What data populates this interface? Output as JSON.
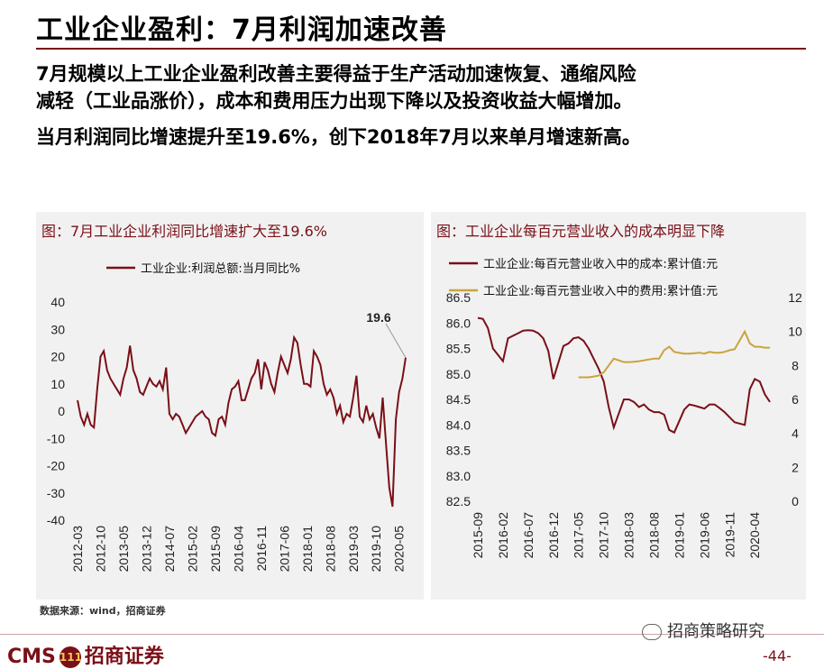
{
  "slide": {
    "title": "工业企业盈利：7月利润加速改善",
    "line1": "7月规模以上工业企业盈利改善主要得益于生产活动加速恢复、通缩风险",
    "line2": "减轻（工业品涨价），成本和费用压力出现下降以及投资收益大幅增加。",
    "line3": "当月利润同比增速提升至19.6%，创下2018年7月以来单月增速新高。",
    "source": "数据来源：wind，招商证券",
    "logo_text": "CMS",
    "logo_badge": "111",
    "logo_cn": "招商证券",
    "brand": "招商策略研究",
    "page": "-44-"
  },
  "colors": {
    "dark_red": "#7a0f17",
    "gold": "#c9a43c"
  },
  "chart_data": [
    {
      "type": "line",
      "title": "图：7月工业企业利润同比增速扩大至19.6%",
      "legend_position": "top",
      "ylim": [
        -40,
        40
      ],
      "yticks": [
        "40",
        "30",
        "20",
        "10",
        "0",
        "-10",
        "-20",
        "-30",
        "-40"
      ],
      "xticks": [
        "2012-03",
        "2012-10",
        "2013-05",
        "2013-12",
        "2014-07",
        "2015-02",
        "2015-09",
        "2016-04",
        "2016-11",
        "2017-06",
        "2018-01",
        "2018-08",
        "2019-03",
        "2019-10",
        "2020-05"
      ],
      "annotation": "19.6",
      "series": [
        {
          "name": "工业企业:利润总额:当月同比%",
          "color": "#7a0f17",
          "x": [
            "2012-03",
            "2012-04",
            "2012-05",
            "2012-06",
            "2012-07",
            "2012-08",
            "2012-09",
            "2012-10",
            "2012-11",
            "2012-12",
            "2013-01",
            "2013-02",
            "2013-03",
            "2013-04",
            "2013-05",
            "2013-06",
            "2013-07",
            "2013-08",
            "2013-09",
            "2013-10",
            "2013-11",
            "2013-12",
            "2014-01",
            "2014-02",
            "2014-03",
            "2014-04",
            "2014-05",
            "2014-06",
            "2014-07",
            "2014-08",
            "2014-09",
            "2014-10",
            "2014-11",
            "2014-12",
            "2015-01",
            "2015-02",
            "2015-03",
            "2015-04",
            "2015-05",
            "2015-06",
            "2015-07",
            "2015-08",
            "2015-09",
            "2015-10",
            "2015-11",
            "2015-12",
            "2016-01",
            "2016-02",
            "2016-03",
            "2016-04",
            "2016-05",
            "2016-06",
            "2016-07",
            "2016-08",
            "2016-09",
            "2016-10",
            "2016-11",
            "2016-12",
            "2017-01",
            "2017-02",
            "2017-03",
            "2017-04",
            "2017-05",
            "2017-06",
            "2017-07",
            "2017-08",
            "2017-09",
            "2017-10",
            "2017-11",
            "2017-12",
            "2018-01",
            "2018-02",
            "2018-03",
            "2018-04",
            "2018-05",
            "2018-06",
            "2018-07",
            "2018-08",
            "2018-09",
            "2018-10",
            "2018-11",
            "2018-12",
            "2019-01",
            "2019-02",
            "2019-03",
            "2019-04",
            "2019-05",
            "2019-06",
            "2019-07",
            "2019-08",
            "2019-09",
            "2019-10",
            "2019-11",
            "2019-12",
            "2020-01",
            "2020-02",
            "2020-03",
            "2020-04",
            "2020-05",
            "2020-06",
            "2020-07"
          ],
          "values": [
            4,
            -2,
            -5,
            -1,
            -5,
            -6,
            8,
            20,
            22,
            15,
            12,
            10,
            8,
            6,
            12,
            16,
            24,
            15,
            12,
            7,
            6,
            9,
            12,
            10,
            9,
            11,
            8,
            16,
            -1,
            -3,
            -1,
            -2,
            -5,
            -8,
            -6,
            -4,
            -2,
            -1,
            0,
            -2,
            -3,
            -8,
            -9,
            -3,
            -2,
            -5,
            3,
            8,
            9,
            11,
            4,
            4,
            8,
            12,
            14,
            19,
            8,
            18,
            15,
            10,
            7,
            14,
            20,
            17,
            14,
            19,
            27,
            25,
            17,
            10,
            10,
            9,
            22,
            20,
            17,
            10,
            6,
            8,
            5,
            -1,
            2,
            -4,
            -1,
            -2,
            5,
            13,
            -2,
            -4,
            2,
            -3,
            -1,
            -6,
            -10,
            5,
            -12,
            -28,
            -35,
            -3,
            7,
            12,
            19.6
          ]
        }
      ]
    },
    {
      "type": "line",
      "title": "图：工业企业每百元营业收入的成本明显下降",
      "legend_position": "top",
      "ylim_left": [
        82.5,
        86.5
      ],
      "ylim_right": [
        0,
        12
      ],
      "yticks_left": [
        "86.5",
        "86.0",
        "85.5",
        "85.0",
        "84.5",
        "84.0",
        "83.5",
        "83.0",
        "82.5"
      ],
      "yticks_right": [
        "12",
        "10",
        "8",
        "6",
        "4",
        "2",
        "0"
      ],
      "xticks": [
        "2015-09",
        "2016-02",
        "2016-07",
        "2016-12",
        "2017-05",
        "2017-10",
        "2018-03",
        "2018-08",
        "2019-01",
        "2019-06",
        "2019-11",
        "2020-04"
      ],
      "series": [
        {
          "name": "工业企业:每百元营业收入中的成本:累计值:元",
          "color": "#7a0f17",
          "axis": "left",
          "x": [
            "2015-09",
            "2015-10",
            "2015-11",
            "2015-12",
            "2016-02",
            "2016-03",
            "2016-04",
            "2016-05",
            "2016-06",
            "2016-07",
            "2016-08",
            "2016-09",
            "2016-10",
            "2016-11",
            "2016-12",
            "2017-02",
            "2017-03",
            "2017-04",
            "2017-05",
            "2017-06",
            "2017-07",
            "2017-08",
            "2017-09",
            "2017-10",
            "2017-11",
            "2017-12",
            "2018-02",
            "2018-03",
            "2018-04",
            "2018-05",
            "2018-06",
            "2018-07",
            "2018-08",
            "2018-09",
            "2018-10",
            "2018-11",
            "2018-12",
            "2019-02",
            "2019-03",
            "2019-04",
            "2019-05",
            "2019-06",
            "2019-07",
            "2019-08",
            "2019-09",
            "2019-10",
            "2019-11",
            "2019-12",
            "2020-02",
            "2020-03",
            "2020-04",
            "2020-05",
            "2020-06",
            "2020-07"
          ],
          "values": [
            86.1,
            86.08,
            85.9,
            85.5,
            85.25,
            85.7,
            85.75,
            85.8,
            85.85,
            85.86,
            85.85,
            85.8,
            85.7,
            85.45,
            84.9,
            85.55,
            85.6,
            85.7,
            85.72,
            85.65,
            85.5,
            85.3,
            85.1,
            84.85,
            84.35,
            83.95,
            84.5,
            84.5,
            84.45,
            84.35,
            84.4,
            84.3,
            84.25,
            84.25,
            84.2,
            83.9,
            83.85,
            84.3,
            84.4,
            84.38,
            84.35,
            84.32,
            84.4,
            84.4,
            84.33,
            84.25,
            84.15,
            84.05,
            84.0,
            84.7,
            84.9,
            84.85,
            84.6,
            84.45
          ]
        },
        {
          "name": "工业企业:每百元营业收入中的费用:累计值:元",
          "color": "#c9a43c",
          "axis": "right",
          "x": [
            "2017-05",
            "2017-06",
            "2017-07",
            "2017-08",
            "2017-09",
            "2017-10",
            "2017-11",
            "2017-12",
            "2018-02",
            "2018-03",
            "2018-04",
            "2018-05",
            "2018-06",
            "2018-07",
            "2018-08",
            "2018-09",
            "2018-10",
            "2018-11",
            "2018-12",
            "2019-02",
            "2019-03",
            "2019-04",
            "2019-05",
            "2019-06",
            "2019-07",
            "2019-08",
            "2019-09",
            "2019-10",
            "2019-11",
            "2019-12",
            "2020-02",
            "2020-03",
            "2020-04",
            "2020-05",
            "2020-06",
            "2020-07"
          ],
          "values": [
            7.3,
            7.3,
            7.3,
            7.35,
            7.4,
            7.6,
            8.0,
            8.4,
            8.2,
            8.2,
            8.22,
            8.25,
            8.3,
            8.35,
            8.4,
            8.4,
            8.9,
            9.1,
            8.8,
            8.7,
            8.7,
            8.72,
            8.75,
            8.7,
            8.8,
            8.75,
            8.75,
            8.8,
            8.9,
            8.95,
            10.0,
            9.3,
            9.1,
            9.1,
            9.05,
            9.05
          ]
        }
      ]
    }
  ]
}
